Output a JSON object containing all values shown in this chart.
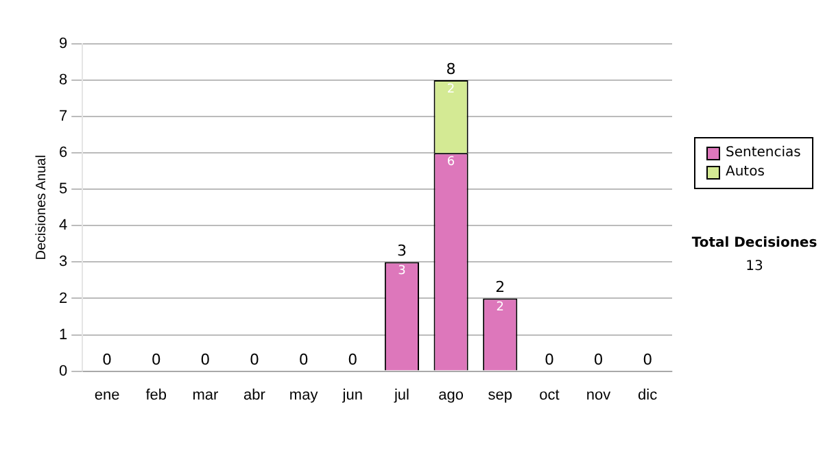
{
  "chart_data": {
    "type": "bar",
    "stacked": true,
    "ylabel": "Decisiones Anual",
    "categories": [
      "ene",
      "feb",
      "mar",
      "abr",
      "may",
      "jun",
      "jul",
      "ago",
      "sep",
      "oct",
      "nov",
      "dic"
    ],
    "series": [
      {
        "name": "Sentencias",
        "color": "#dd77bb",
        "values": [
          0,
          0,
          0,
          0,
          0,
          0,
          3,
          6,
          2,
          0,
          0,
          0
        ],
        "value_labels": [
          null,
          null,
          null,
          null,
          null,
          null,
          "3",
          "6",
          "2",
          null,
          null,
          null
        ]
      },
      {
        "name": "Autos",
        "color": "#d4ea94",
        "values": [
          0,
          0,
          0,
          0,
          0,
          0,
          0,
          2,
          0,
          0,
          0,
          0
        ],
        "value_labels": [
          null,
          null,
          null,
          null,
          null,
          null,
          null,
          "2",
          null,
          null,
          null,
          null
        ]
      }
    ],
    "totals": [
      "0",
      "0",
      "0",
      "0",
      "0",
      "0",
      "3",
      "8",
      "2",
      "0",
      "0",
      "0"
    ],
    "ylim": [
      0,
      9
    ],
    "yticks": [
      0,
      1,
      2,
      3,
      4,
      5,
      6,
      7,
      8,
      9
    ],
    "grid": "y",
    "legend": "right",
    "annotations": [
      "Total Decisiones",
      "13"
    ]
  }
}
